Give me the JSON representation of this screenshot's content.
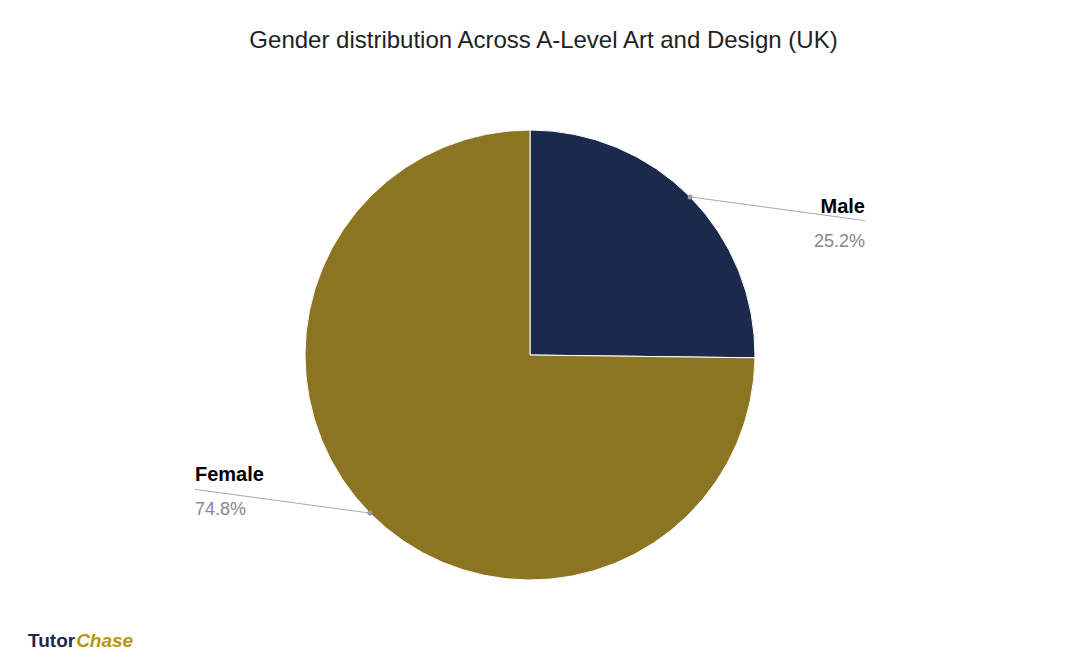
{
  "chart_data": {
    "type": "pie",
    "title": "Gender distribution Across A-Level Art and Design (UK)",
    "categories": [
      "Male",
      "Female"
    ],
    "values": [
      25.2,
      74.8
    ],
    "value_labels": [
      "25.2%",
      "74.8%"
    ],
    "colors": [
      "#1b2a4a",
      "#8B7523"
    ],
    "data_labels": true,
    "annotations": [
      {
        "text": "Tutor",
        "color": "#1b2a4a"
      },
      {
        "text": "Chase",
        "color": "#b8960c"
      }
    ]
  }
}
